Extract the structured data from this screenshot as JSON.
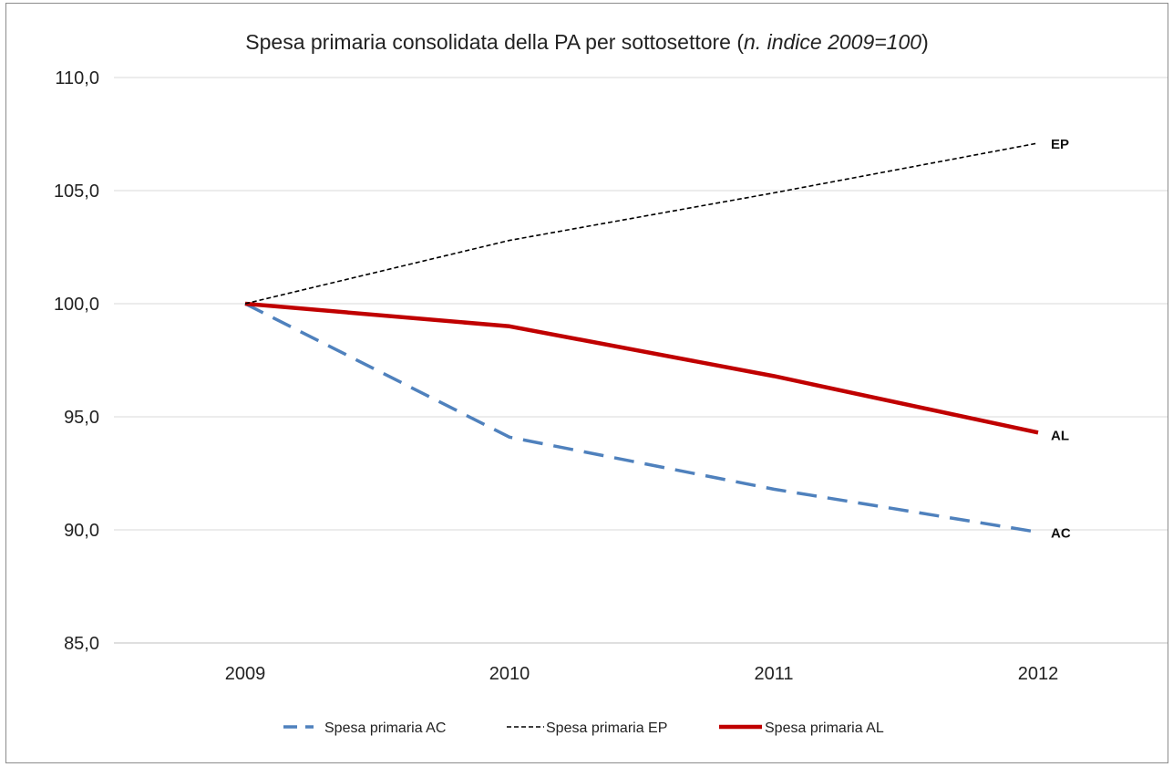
{
  "chart_data": {
    "type": "line",
    "title": {
      "main": "Spesa primaria consolidata della PA per sottosettore (",
      "italic": "n. indice 2009=100",
      "close": ")"
    },
    "xlabel": "",
    "ylabel": "",
    "categories": [
      "2009",
      "2010",
      "2011",
      "2012"
    ],
    "ylim": [
      85,
      110
    ],
    "yticks": [
      85,
      90,
      95,
      100,
      105,
      110
    ],
    "ytick_labels": [
      "85,0",
      "90,0",
      "95,0",
      "100,0",
      "105,0",
      "110,0"
    ],
    "grid": "horizontal",
    "legend_position": "bottom",
    "series": [
      {
        "name": "Spesa primaria AC",
        "end_label": "AC",
        "values": [
          100.0,
          94.1,
          91.8,
          89.9
        ],
        "color": "#4f81bd",
        "style": "long-dash"
      },
      {
        "name": "Spesa primaria EP",
        "end_label": "EP",
        "values": [
          100.0,
          102.8,
          104.9,
          107.1
        ],
        "color": "#000000",
        "style": "short-dash"
      },
      {
        "name": "Spesa primaria AL",
        "end_label": "AL",
        "values": [
          100.0,
          99.0,
          96.8,
          94.3
        ],
        "color": "#c00000",
        "style": "solid"
      }
    ]
  }
}
